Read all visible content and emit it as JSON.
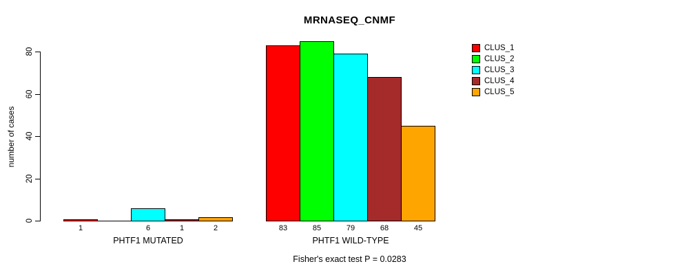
{
  "chart_data": {
    "type": "bar",
    "title": "MRNASEQ_CNMF",
    "ylabel": "number of cases",
    "xlabel": "",
    "caption": "Fisher's exact test P = 0.0283",
    "categories": [
      "PHTF1 MUTATED",
      "PHTF1 WILD-TYPE"
    ],
    "series": [
      {
        "name": "CLUS_1",
        "color": "#FF0000",
        "values": [
          1,
          83
        ]
      },
      {
        "name": "CLUS_2",
        "color": "#00FF00",
        "values": [
          0,
          85
        ]
      },
      {
        "name": "CLUS_3",
        "color": "#00FFFF",
        "values": [
          6,
          79
        ]
      },
      {
        "name": "CLUS_4",
        "color": "#A52A2A",
        "values": [
          1,
          68
        ]
      },
      {
        "name": "CLUS_5",
        "color": "#FFA500",
        "values": [
          2,
          45
        ]
      }
    ],
    "bar_value_labels": [
      [
        "1",
        "",
        "6",
        "1",
        "2"
      ],
      [
        "83",
        "85",
        "79",
        "68",
        "45"
      ]
    ],
    "yticks": [
      0,
      20,
      40,
      60,
      80
    ],
    "ylim": [
      0,
      85
    ],
    "grid": false,
    "legend_position": "top-right",
    "axis_color": "#000000",
    "bar_border_color": "#000000"
  }
}
